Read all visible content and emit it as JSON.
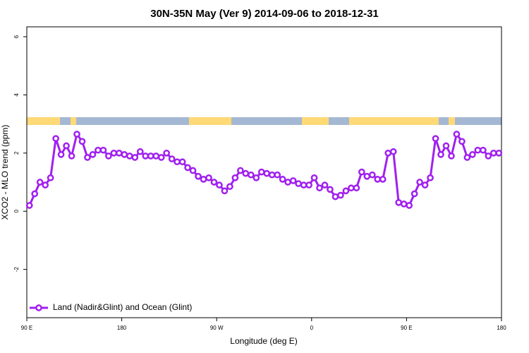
{
  "chart_data": {
    "type": "line",
    "title": "30N-35N May (Ver 9)   2014-09-06 to 2018-12-31",
    "x_label": "Longitude (deg E)",
    "y_label": "XCO2 - MLO trend (ppm)",
    "xlim": [
      90,
      540
    ],
    "ylim": [
      -3.66,
      6.34
    ],
    "xticks": [
      {
        "value": 90,
        "label": "90 E"
      },
      180,
      {
        "value": 270,
        "label": "90 W"
      },
      {
        "value": 360,
        "label": "0"
      },
      {
        "value": 450,
        "label": "90 E"
      },
      {
        "value": 540,
        "label": "180"
      }
    ],
    "yticks": [
      -2,
      0,
      2,
      4,
      6
    ],
    "legend": "bottom-left",
    "x": [
      92.5,
      97.5,
      102.5,
      107.5,
      112.5,
      117.5,
      122.5,
      127.5,
      132.5,
      137.5,
      142.5,
      147.5,
      152.5,
      157.5,
      162.5,
      167.5,
      172.5,
      177.5,
      182.5,
      187.5,
      192.5,
      197.5,
      202.5,
      207.5,
      212.5,
      217.5,
      222.5,
      227.5,
      232.5,
      237.5,
      242.5,
      247.5,
      252.5,
      257.5,
      262.5,
      267.5,
      272.5,
      277.5,
      282.5,
      287.5,
      292.5,
      297.5,
      302.5,
      307.5,
      312.5,
      317.5,
      322.5,
      327.5,
      332.5,
      337.5,
      342.5,
      347.5,
      352.5,
      357.5,
      362.5,
      367.5,
      372.5,
      377.5,
      382.5,
      387.5,
      392.5,
      397.5,
      402.5,
      407.5,
      412.5,
      417.5,
      422.5,
      427.5,
      432.5,
      437.5,
      442.5,
      447.5,
      452.5,
      457.5,
      462.5,
      467.5,
      472.5,
      477.5,
      482.5,
      487.5,
      492.5,
      497.5,
      502.5,
      507.5,
      512.5,
      517.5,
      522.5,
      527.5,
      532.5,
      537.5
    ],
    "series": [
      {
        "name": "Land (Nadir&Glint) and Ocean (Glint)",
        "color": "#a020f0",
        "values": [
          0.2,
          0.6,
          1.0,
          0.9,
          1.15,
          2.5,
          1.95,
          2.25,
          1.9,
          2.65,
          2.4,
          1.85,
          1.95,
          2.1,
          2.1,
          1.9,
          2.0,
          2.0,
          1.95,
          1.9,
          1.85,
          2.05,
          1.9,
          1.9,
          1.9,
          1.85,
          2.0,
          1.8,
          1.7,
          1.7,
          1.5,
          1.4,
          1.2,
          1.1,
          1.15,
          1.0,
          0.9,
          0.7,
          0.85,
          1.15,
          1.4,
          1.3,
          1.25,
          1.15,
          1.35,
          1.3,
          1.25,
          1.25,
          1.1,
          1.0,
          1.05,
          0.95,
          0.9,
          0.9,
          1.15,
          0.8,
          0.9,
          0.75,
          0.5,
          0.55,
          0.7,
          0.8,
          0.8,
          1.35,
          1.2,
          1.25,
          1.1,
          1.1,
          2.0,
          2.05,
          0.3,
          0.25,
          0.2,
          0.6,
          1.0,
          0.9,
          1.15,
          2.5,
          1.95,
          2.25,
          1.9,
          2.65,
          2.4,
          1.85,
          1.95,
          2.1,
          2.1,
          1.9,
          2.0,
          2.0
        ]
      }
    ]
  }
}
